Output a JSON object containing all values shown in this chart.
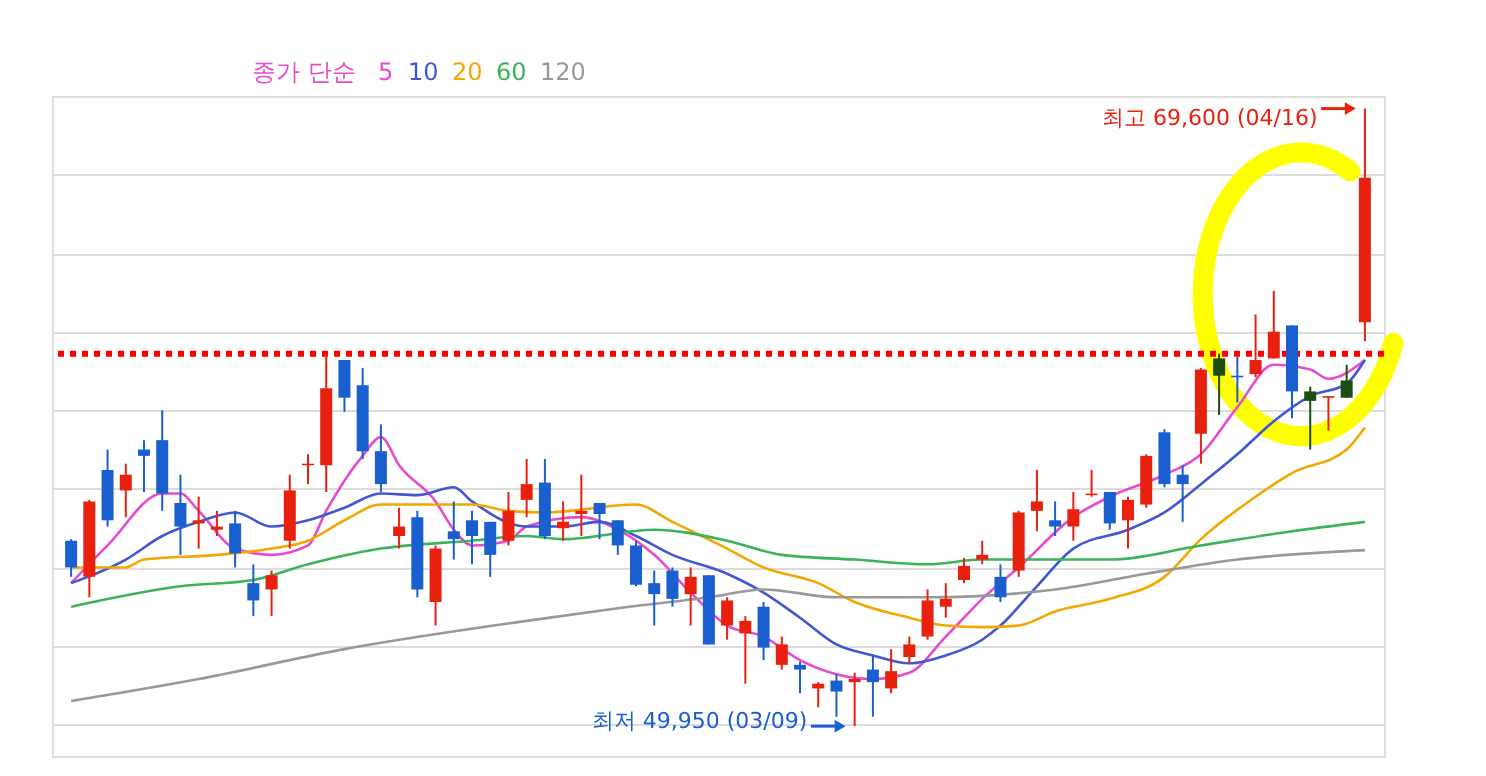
{
  "chart_data": {
    "type": "candlestick",
    "legend_title": "종가 단순",
    "legend": "top left",
    "grid": "y",
    "tick_labels": false,
    "ylim": [
      49000,
      70000
    ],
    "yticks": [
      {
        "value": 50000,
        "label": null
      },
      {
        "value": 52500,
        "label": null
      },
      {
        "value": 55000,
        "label": null
      },
      {
        "value": 57500,
        "label": null
      },
      {
        "value": 60000,
        "label": null
      },
      {
        "value": 62500,
        "label": null
      },
      {
        "value": 65000,
        "label": null
      },
      {
        "value": 67500,
        "label": null
      }
    ],
    "categories": [
      null,
      null,
      null,
      null,
      null,
      null,
      null,
      null,
      null,
      null,
      null,
      null,
      null,
      null,
      null,
      null,
      null,
      null,
      null,
      null,
      null,
      null,
      null,
      null,
      null,
      null,
      null,
      null,
      null,
      null,
      null,
      null,
      null,
      null,
      null,
      null,
      null,
      null,
      null,
      null,
      null,
      null,
      null,
      null,
      null,
      null,
      null,
      null,
      null,
      null,
      null,
      null,
      null,
      null,
      null,
      null,
      null,
      null,
      null,
      null,
      null,
      null,
      null,
      null,
      null,
      null,
      null,
      null,
      null,
      null,
      null,
      null
    ],
    "ohlc": [
      [
        55850,
        55900,
        54700,
        55000
      ],
      [
        54700,
        57150,
        54050,
        57100
      ],
      [
        58100,
        58750,
        56300,
        56500
      ],
      [
        57450,
        58300,
        56600,
        57950
      ],
      [
        58750,
        59050,
        57400,
        58550
      ],
      [
        59050,
        60000,
        56800,
        57350
      ],
      [
        57050,
        57950,
        55400,
        56300
      ],
      [
        56400,
        57250,
        55600,
        56500
      ],
      [
        56200,
        56800,
        56000,
        56300
      ],
      [
        56400,
        56800,
        55000,
        55450
      ],
      [
        54500,
        55100,
        53450,
        53950
      ],
      [
        54300,
        54900,
        53450,
        54750
      ],
      [
        55850,
        57950,
        55600,
        57450
      ],
      [
        58250,
        58600,
        57650,
        58300
      ],
      [
        58250,
        61800,
        57400,
        60700
      ],
      [
        61600,
        61600,
        59950,
        60400
      ],
      [
        60800,
        61350,
        58450,
        58700
      ],
      [
        58700,
        59550,
        57400,
        57650
      ],
      [
        56000,
        56900,
        55600,
        56300
      ],
      [
        56600,
        56800,
        54050,
        54300
      ],
      [
        53900,
        55700,
        53150,
        55600
      ],
      [
        56150,
        57100,
        55250,
        55900
      ],
      [
        56500,
        56800,
        55100,
        56000
      ],
      [
        56450,
        56450,
        54700,
        55400
      ],
      [
        55850,
        57400,
        55700,
        56800
      ],
      [
        57150,
        58450,
        56600,
        57650
      ],
      [
        57700,
        58450,
        55900,
        56000
      ],
      [
        56250,
        57100,
        55850,
        56450
      ],
      [
        56700,
        57950,
        56000,
        56800
      ],
      [
        57050,
        57050,
        55900,
        56700
      ],
      [
        56500,
        56500,
        55400,
        55700
      ],
      [
        55700,
        55850,
        54400,
        54450
      ],
      [
        54500,
        54900,
        53150,
        54150
      ],
      [
        54900,
        55000,
        53750,
        54000
      ],
      [
        54150,
        55000,
        53150,
        54700
      ],
      [
        54750,
        54750,
        52550,
        52550
      ],
      [
        53150,
        54050,
        52700,
        53950
      ],
      [
        52900,
        53450,
        51300,
        53300
      ],
      [
        53750,
        53900,
        52050,
        52450
      ],
      [
        51900,
        52800,
        51750,
        52550
      ],
      [
        51900,
        52000,
        51000,
        51750
      ],
      [
        51150,
        51350,
        50550,
        51300
      ],
      [
        51400,
        51600,
        50250,
        51050
      ],
      [
        51350,
        51650,
        49950,
        51450
      ],
      [
        51750,
        52200,
        50250,
        51350
      ],
      [
        51150,
        52400,
        51000,
        51700
      ],
      [
        52150,
        52800,
        51950,
        52550
      ],
      [
        52800,
        54300,
        52700,
        53950
      ],
      [
        53750,
        54500,
        53400,
        54000
      ],
      [
        54600,
        55300,
        54500,
        55050
      ],
      [
        55250,
        55850,
        55100,
        55400
      ],
      [
        54700,
        55100,
        53900,
        54050
      ],
      [
        54900,
        56800,
        54700,
        56750
      ],
      [
        56800,
        58100,
        56150,
        57100
      ],
      [
        56500,
        57100,
        56000,
        56300
      ],
      [
        56300,
        57400,
        55850,
        56850
      ],
      [
        57300,
        58100,
        57250,
        57350
      ],
      [
        57400,
        57400,
        56200,
        56400
      ],
      [
        56500,
        57250,
        55600,
        57150
      ],
      [
        57000,
        58600,
        56900,
        58550
      ],
      [
        59300,
        59400,
        57550,
        57650
      ],
      [
        57950,
        58250,
        56450,
        57650
      ],
      [
        59250,
        61350,
        58300,
        61300
      ],
      [
        61650,
        61800,
        59850,
        61100
      ],
      [
        61100,
        61700,
        60250,
        61050
      ],
      [
        61150,
        63050,
        61050,
        61600
      ],
      [
        61650,
        63800,
        61650,
        62500
      ],
      [
        62700,
        62700,
        59750,
        60600
      ],
      [
        60600,
        60750,
        58750,
        60300
      ],
      [
        60400,
        60450,
        59350,
        60450
      ],
      [
        60950,
        61450,
        60400,
        60400
      ],
      [
        62800,
        69600,
        62200,
        67400
      ]
    ],
    "colors": [
      "#1a5fd0",
      "#e8210f",
      "#1a5fd0",
      "#e8210f",
      "#1a5fd0",
      "#1a5fd0",
      "#1a5fd0",
      "#e8210f",
      "#e8210f",
      "#1a5fd0",
      "#1a5fd0",
      "#e8210f",
      "#e8210f",
      "#e8210f",
      "#e8210f",
      "#1a5fd0",
      "#1a5fd0",
      "#1a5fd0",
      "#e8210f",
      "#1a5fd0",
      "#e8210f",
      "#1a5fd0",
      "#1a5fd0",
      "#1a5fd0",
      "#e8210f",
      "#e8210f",
      "#1a5fd0",
      "#e8210f",
      "#e8210f",
      "#1a5fd0",
      "#1a5fd0",
      "#1a5fd0",
      "#1a5fd0",
      "#1a5fd0",
      "#e8210f",
      "#1a5fd0",
      "#e8210f",
      "#e8210f",
      "#1a5fd0",
      "#e8210f",
      "#1a5fd0",
      "#e8210f",
      "#1a5fd0",
      "#e8210f",
      "#1a5fd0",
      "#e8210f",
      "#e8210f",
      "#e8210f",
      "#e8210f",
      "#e8210f",
      "#e8210f",
      "#1a5fd0",
      "#e8210f",
      "#e8210f",
      "#1a5fd0",
      "#e8210f",
      "#e8210f",
      "#1a5fd0",
      "#e8210f",
      "#e8210f",
      "#1a5fd0",
      "#1a5fd0",
      "#e8210f",
      "#1d4d12",
      "#1a5fd0",
      "#e8210f",
      "#e8210f",
      "#1a5fd0",
      "#1d4d12",
      "#e8210f",
      "#1d4d12",
      "#e8210f"
    ],
    "series": [
      {
        "name": "5",
        "type": "line",
        "color": "#e64ccd",
        "values": [
          54500,
          null,
          55700,
          null,
          null,
          57350,
          57350,
          56800,
          null,
          55600,
          null,
          55400,
          null,
          55700,
          56800,
          null,
          58550,
          59150,
          58250,
          null,
          57100,
          56200,
          55700,
          null,
          55850,
          56300,
          null,
          null,
          56600,
          null,
          56200,
          null,
          55400,
          null,
          54200,
          null,
          53150,
          null,
          52800,
          null,
          52050,
          null,
          51600,
          null,
          51450,
          null,
          51650,
          null,
          52800,
          53400,
          54000,
          null,
          55000,
          null,
          null,
          56600,
          null,
          57250,
          null,
          null,
          57950,
          null,
          58600,
          null,
          60100,
          null,
          61450,
          null,
          61300,
          61000,
          null,
          61600
        ]
      },
      {
        "name": "10",
        "type": "line",
        "color": "#4257d4",
        "values": [
          54500,
          null,
          null,
          55250,
          null,
          56000,
          null,
          56450,
          null,
          56750,
          null,
          56300,
          null,
          56500,
          null,
          56900,
          null,
          57350,
          null,
          57300,
          null,
          57550,
          57100,
          null,
          null,
          56300,
          null,
          56300,
          null,
          56450,
          null,
          56000,
          null,
          55400,
          null,
          null,
          54800,
          null,
          54200,
          null,
          53400,
          null,
          52550,
          null,
          52200,
          null,
          51950,
          null,
          52200,
          null,
          52700,
          53150,
          null,
          54400,
          null,
          55600,
          null,
          null,
          56200,
          null,
          56750,
          null,
          57650,
          null,
          58600,
          null,
          59650,
          null,
          60450,
          null,
          60850,
          61600
        ]
      },
      {
        "name": "20",
        "type": "line",
        "color": "#f2a800",
        "values": [
          55000,
          null,
          null,
          55000,
          55250,
          null,
          null,
          null,
          55400,
          null,
          null,
          55600,
          null,
          55850,
          null,
          56500,
          null,
          57000,
          null,
          null,
          null,
          null,
          57000,
          null,
          56800,
          null,
          56750,
          null,
          null,
          null,
          null,
          57000,
          null,
          56450,
          null,
          null,
          55600,
          null,
          55000,
          null,
          null,
          54500,
          null,
          53900,
          null,
          null,
          53400,
          null,
          53150,
          null,
          53100,
          null,
          53150,
          null,
          53600,
          null,
          null,
          54000,
          null,
          null,
          54700,
          null,
          55900,
          null,
          null,
          57250,
          null,
          58000,
          null,
          null,
          58750,
          59450
        ]
      },
      {
        "name": "60",
        "type": "line",
        "color": "#3cb35a",
        "values": [
          53750,
          null,
          null,
          null,
          null,
          null,
          54400,
          null,
          null,
          null,
          54600,
          null,
          null,
          55100,
          null,
          null,
          null,
          55600,
          null,
          null,
          null,
          null,
          55850,
          null,
          null,
          56000,
          null,
          55900,
          null,
          null,
          null,
          null,
          56200,
          null,
          null,
          null,
          55850,
          null,
          null,
          55400,
          null,
          null,
          null,
          55250,
          null,
          null,
          null,
          55100,
          null,
          null,
          55250,
          null,
          null,
          null,
          null,
          null,
          null,
          55250,
          null,
          null,
          null,
          null,
          55700,
          null,
          null,
          null,
          null,
          56150,
          null,
          null,
          null,
          56450
        ]
      },
      {
        "name": "120",
        "type": "line",
        "color": "#999999",
        "values": [
          50750,
          null,
          null,
          null,
          null,
          null,
          null,
          51450,
          null,
          null,
          null,
          null,
          null,
          null,
          null,
          52400,
          null,
          null,
          null,
          null,
          null,
          null,
          null,
          null,
          null,
          53300,
          null,
          null,
          null,
          null,
          53700,
          null,
          null,
          null,
          null,
          54050,
          null,
          null,
          54300,
          null,
          null,
          null,
          54050,
          null,
          null,
          null,
          null,
          54050,
          null,
          null,
          null,
          null,
          null,
          null,
          54300,
          null,
          null,
          null,
          null,
          54800,
          null,
          null,
          null,
          null,
          55250,
          null,
          null,
          null,
          null,
          null,
          null,
          55550
        ]
      }
    ],
    "ref_lines": [
      {
        "axis": "y",
        "value": 61800,
        "color": "#ff0000",
        "line_style": "dotted"
      }
    ],
    "annotations": [
      "최고 69,600 (04/16)",
      "최저 49,950 (03/09)"
    ]
  }
}
